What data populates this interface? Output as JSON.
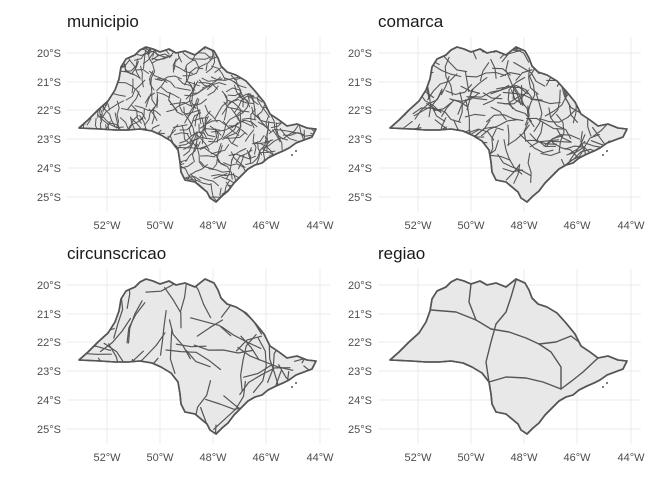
{
  "panels": [
    {
      "title": "municipio"
    },
    {
      "title": "comarca"
    },
    {
      "title": "circunscricao"
    },
    {
      "title": "regiao"
    }
  ],
  "map": {
    "lat_ticks": [
      "20°S",
      "21°S",
      "22°S",
      "23°S",
      "24°S",
      "25°S"
    ],
    "lon_ticks": [
      "52°W",
      "50°W",
      "48°W",
      "46°W",
      "44°W"
    ],
    "fill_color": "#e8e8e8",
    "border_color": "#555555",
    "grid_color": "#ebebeb"
  }
}
